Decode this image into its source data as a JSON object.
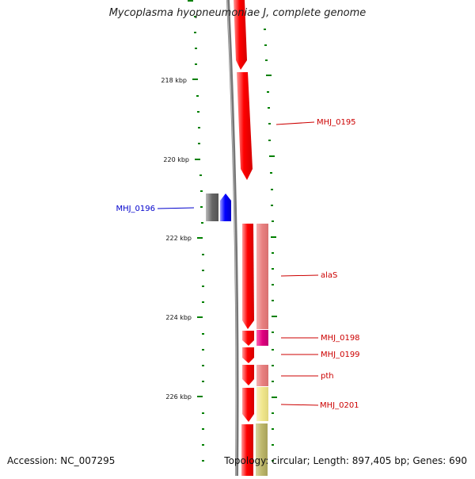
{
  "title": "Mycoplasma hyopneumoniae J, complete genome",
  "footer": {
    "accession": "Accession: NC_007295",
    "summary": "Topology: circular; Length: 897,405 bp; Genes: 690"
  },
  "ruler_labels": [
    "218 kbp",
    "220 kbp",
    "222 kbp",
    "224 kbp",
    "226 kbp"
  ],
  "gene_labels": [
    {
      "text": "MHJ_0195",
      "color": "#cc0000"
    },
    {
      "text": "MHJ_0196",
      "color": "#0000cc"
    },
    {
      "text": "alaS",
      "color": "#cc0000"
    },
    {
      "text": "MHJ_0198",
      "color": "#cc0000"
    },
    {
      "text": "MHJ_0199",
      "color": "#cc0000"
    },
    {
      "text": "pth",
      "color": "#cc0000"
    },
    {
      "text": "MHJ_0201",
      "color": "#cc0000"
    }
  ],
  "colors": {
    "forward_cds": "#ff0000",
    "reverse_cds": "#0000ff",
    "backbone": "#808080",
    "tick": "#008000",
    "cog_salmon": "#e88080",
    "cog_magenta": "#e0007f",
    "cog_khaki": "#f0e68c",
    "cog_olive": "#bdb76b",
    "grey_feature": "#707070"
  }
}
